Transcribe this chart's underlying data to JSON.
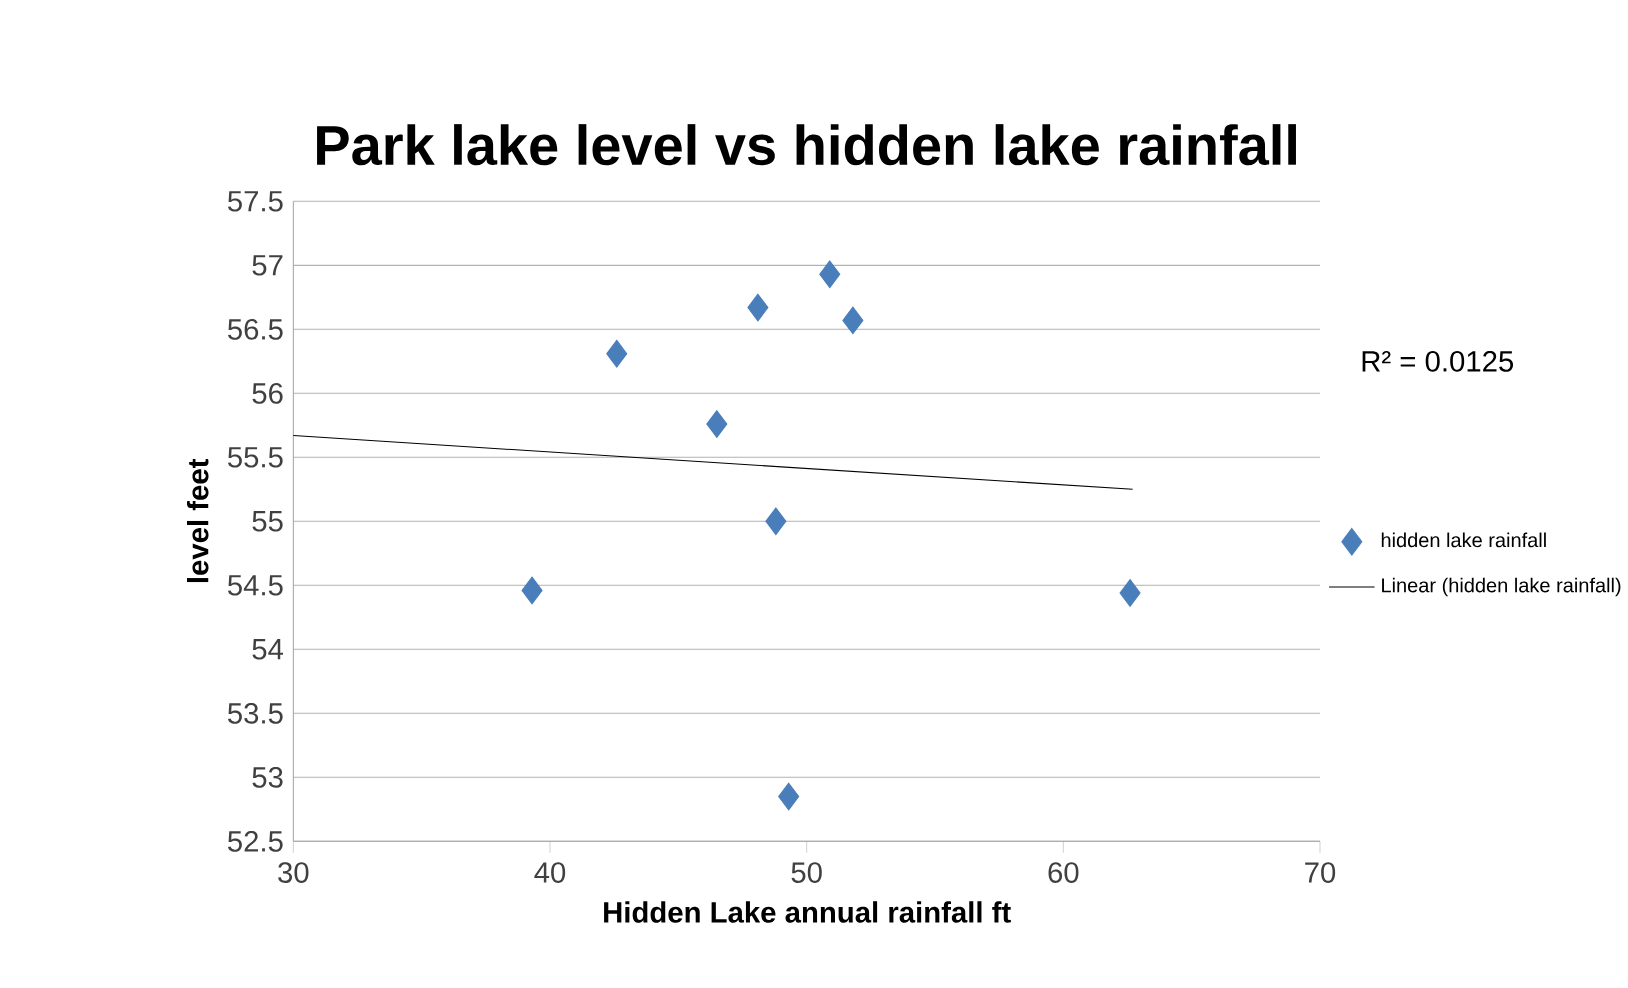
{
  "chart_data": {
    "type": "scatter",
    "title": "Park lake level vs hidden lake rainfall",
    "xlabel": "Hidden Lake annual rainfall ft",
    "ylabel": "level feet",
    "x": [
      50.9,
      48.1,
      51.8,
      42.6,
      46.5,
      48.8,
      39.3,
      62.6,
      49.3
    ],
    "series": [
      {
        "name": "hidden lake rainfall",
        "color": "#4a7ebb",
        "marker": "diamond",
        "values": [
          56.93,
          56.67,
          56.57,
          56.31,
          55.76,
          55.0,
          54.46,
          54.44,
          52.85
        ]
      },
      {
        "name": "Linear (hidden lake rainfall)",
        "type": "line",
        "color": "#000000",
        "marker": "none",
        "x": [
          30,
          62.7
        ],
        "values": [
          55.67,
          55.25
        ]
      }
    ],
    "annotations": [
      "R² = 0.0125"
    ],
    "xlim": [
      30,
      70
    ],
    "ylim": [
      52.5,
      57.5
    ],
    "xticks": [
      30,
      40,
      50,
      60,
      70
    ],
    "yticks": [
      52.5,
      53,
      53.5,
      54,
      54.5,
      55,
      55.5,
      56,
      56.5,
      57,
      57.5
    ],
    "grid": "y",
    "legend": "right"
  }
}
